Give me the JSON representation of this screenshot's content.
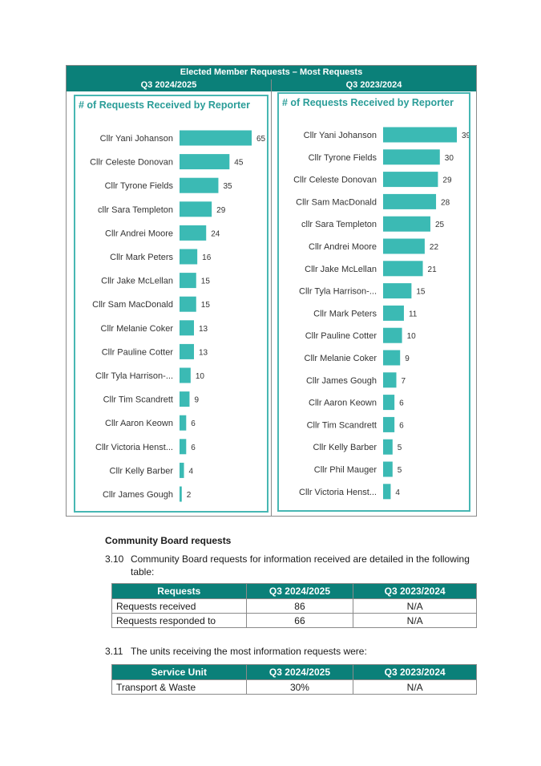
{
  "panel": {
    "title": "Elected Member Requests – Most Requests",
    "period_left": "Q3 2024/2025",
    "period_right": "Q3 2023/2024"
  },
  "chart_data": [
    {
      "type": "bar",
      "orientation": "horizontal",
      "title": "# of Requests Received by Reporter",
      "period": "Q3 2024/2025",
      "categories": [
        "Cllr Yani Johanson",
        "Cllr Celeste Donovan",
        "Cllr Tyrone Fields",
        "cllr Sara Templeton",
        "Cllr Andrei Moore",
        "Cllr Mark Peters",
        "Cllr Jake McLellan",
        "Cllr Sam MacDonald",
        "Cllr Melanie Coker",
        "Cllr Pauline Cotter",
        "Cllr Tyla Harrison-...",
        "Cllr Tim Scandrett",
        "Cllr Aaron Keown",
        "Cllr Victoria Henst...",
        "Cllr Kelly Barber",
        "Cllr James Gough"
      ],
      "values": [
        65,
        45,
        35,
        29,
        24,
        16,
        15,
        15,
        13,
        13,
        10,
        9,
        6,
        6,
        4,
        2
      ],
      "xlim": [
        0,
        65
      ],
      "grid": false,
      "data_labels": true
    },
    {
      "type": "bar",
      "orientation": "horizontal",
      "title": "# of Requests Received by Reporter",
      "period": "Q3 2023/2024",
      "categories": [
        "Cllr Yani Johanson",
        "Cllr Tyrone Fields",
        "Cllr Celeste Donovan",
        "Cllr Sam MacDonald",
        "cllr Sara Templeton",
        "Cllr Andrei Moore",
        "Cllr Jake McLellan",
        "Cllr Tyla Harrison-...",
        "Cllr Mark Peters",
        "Cllr Pauline Cotter",
        "Cllr Melanie Coker",
        "Cllr James Gough",
        "Cllr Aaron Keown",
        "Cllr Tim Scandrett",
        "Cllr Kelly Barber",
        "Cllr Phil Mauger",
        "Cllr Victoria Henst..."
      ],
      "values": [
        39,
        30,
        29,
        28,
        25,
        22,
        21,
        15,
        11,
        10,
        9,
        7,
        6,
        6,
        5,
        5,
        4
      ],
      "xlim": [
        0,
        39
      ],
      "grid": false,
      "data_labels": true
    }
  ],
  "colors": {
    "header_teal": "#0b8079",
    "bar_teal": "#3bbab4",
    "title_teal": "#2a9d98",
    "chart_border": "#47b7b3"
  },
  "community": {
    "heading": "Community Board requests",
    "para_310_num": "3.10",
    "para_310_text": "Community Board requests for information received are detailed in the following table:",
    "table1": {
      "headers": [
        "Requests",
        "Q3 2024/2025",
        "Q3 2023/2024"
      ],
      "rows": [
        [
          "Requests received",
          "86",
          "N/A"
        ],
        [
          "Requests responded to",
          "66",
          "N/A"
        ]
      ]
    },
    "para_311_num": "3.11",
    "para_311_text": "The units receiving the most information requests were:",
    "table2": {
      "headers": [
        "Service Unit",
        "Q3 2024/2025",
        "Q3 2023/2024"
      ],
      "rows": [
        [
          "Transport & Waste",
          "30%",
          "N/A"
        ]
      ]
    }
  }
}
